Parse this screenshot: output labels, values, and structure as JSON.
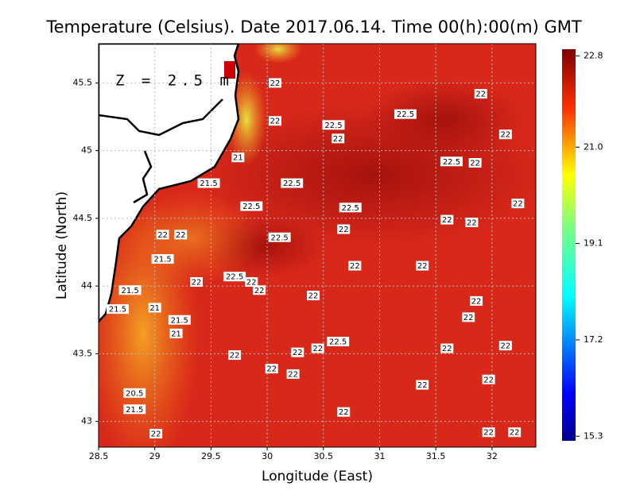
{
  "chart_data": {
    "type": "map",
    "title": "Temperature (Celsius). Date 2017.06.14. Time 00(h):00(m) GMT",
    "x_label": "Longitude (East)",
    "y_label": "Latitude (North)",
    "annotation": "Z = 2.5 m",
    "xlim": [
      28.5,
      32.39
    ],
    "ylim": [
      42.81,
      45.79
    ],
    "xticks": [
      28.5,
      29,
      29.5,
      30,
      30.5,
      31,
      31.5,
      32
    ],
    "yticks": [
      43,
      43.5,
      44,
      44.5,
      45,
      45.5
    ],
    "grid": true,
    "clim": [
      15.21,
      22.93
    ],
    "cticks": [
      22.8,
      {
        "value": 21,
        "label": "21.0"
      },
      19.1,
      17.2,
      15.3
    ],
    "contour_labels": [
      {
        "value": 22,
        "lon": 30.07,
        "lat": 45.5
      },
      {
        "value": 22,
        "lon": 31.9,
        "lat": 45.42
      },
      {
        "value": 22.5,
        "lon": 31.23,
        "lat": 45.27
      },
      {
        "value": 22,
        "lon": 30.07,
        "lat": 45.22
      },
      {
        "value": 22.5,
        "lon": 30.59,
        "lat": 45.19
      },
      {
        "value": 22,
        "lon": 30.63,
        "lat": 45.09
      },
      {
        "value": 22,
        "lon": 32.12,
        "lat": 45.12
      },
      {
        "value": 21,
        "lon": 29.74,
        "lat": 44.95
      },
      {
        "value": 22.5,
        "lon": 31.64,
        "lat": 44.92
      },
      {
        "value": 22,
        "lon": 31.85,
        "lat": 44.91
      },
      {
        "value": 21.5,
        "lon": 29.48,
        "lat": 44.76
      },
      {
        "value": 22.5,
        "lon": 30.22,
        "lat": 44.76
      },
      {
        "value": 22.5,
        "lon": 29.86,
        "lat": 44.59
      },
      {
        "value": 22.5,
        "lon": 30.74,
        "lat": 44.58
      },
      {
        "value": 22,
        "lon": 32.23,
        "lat": 44.61
      },
      {
        "value": 22,
        "lon": 31.6,
        "lat": 44.49
      },
      {
        "value": 22,
        "lon": 31.82,
        "lat": 44.47
      },
      {
        "value": 22,
        "lon": 30.68,
        "lat": 44.42
      },
      {
        "value": 22,
        "lon": 29.07,
        "lat": 44.38
      },
      {
        "value": 22,
        "lon": 29.23,
        "lat": 44.38
      },
      {
        "value": 22.5,
        "lon": 30.11,
        "lat": 44.36
      },
      {
        "value": 21.5,
        "lon": 29.07,
        "lat": 44.2
      },
      {
        "value": 22,
        "lon": 30.78,
        "lat": 44.15
      },
      {
        "value": 22,
        "lon": 31.38,
        "lat": 44.15
      },
      {
        "value": 22.5,
        "lon": 29.71,
        "lat": 44.07
      },
      {
        "value": 22,
        "lon": 29.86,
        "lat": 44.03
      },
      {
        "value": 22,
        "lon": 29.37,
        "lat": 44.03
      },
      {
        "value": 22,
        "lon": 29.93,
        "lat": 43.97
      },
      {
        "value": 21.5,
        "lon": 28.78,
        "lat": 43.97
      },
      {
        "value": 22,
        "lon": 30.41,
        "lat": 43.93
      },
      {
        "value": 22,
        "lon": 31.86,
        "lat": 43.89
      },
      {
        "value": 21.5,
        "lon": 28.67,
        "lat": 43.83
      },
      {
        "value": 21,
        "lon": 29.0,
        "lat": 43.84
      },
      {
        "value": 22,
        "lon": 31.79,
        "lat": 43.77
      },
      {
        "value": 21.5,
        "lon": 29.22,
        "lat": 43.75
      },
      {
        "value": 21,
        "lon": 29.19,
        "lat": 43.65
      },
      {
        "value": 22.5,
        "lon": 30.63,
        "lat": 43.59
      },
      {
        "value": 22,
        "lon": 30.45,
        "lat": 43.54
      },
      {
        "value": 22,
        "lon": 30.27,
        "lat": 43.51
      },
      {
        "value": 22,
        "lon": 31.6,
        "lat": 43.54
      },
      {
        "value": 22,
        "lon": 32.12,
        "lat": 43.56
      },
      {
        "value": 22,
        "lon": 29.71,
        "lat": 43.49
      },
      {
        "value": 22,
        "lon": 30.04,
        "lat": 43.39
      },
      {
        "value": 22,
        "lon": 30.23,
        "lat": 43.35
      },
      {
        "value": 22,
        "lon": 31.97,
        "lat": 43.31
      },
      {
        "value": 22,
        "lon": 31.38,
        "lat": 43.27
      },
      {
        "value": 20.5,
        "lon": 28.82,
        "lat": 43.21
      },
      {
        "value": 21.5,
        "lon": 28.82,
        "lat": 43.09
      },
      {
        "value": 22,
        "lon": 30.68,
        "lat": 43.07
      },
      {
        "value": 22,
        "lon": 29.01,
        "lat": 42.91
      },
      {
        "value": 22,
        "lon": 31.97,
        "lat": 42.92
      },
      {
        "value": 22,
        "lon": 32.2,
        "lat": 42.92
      }
    ]
  }
}
